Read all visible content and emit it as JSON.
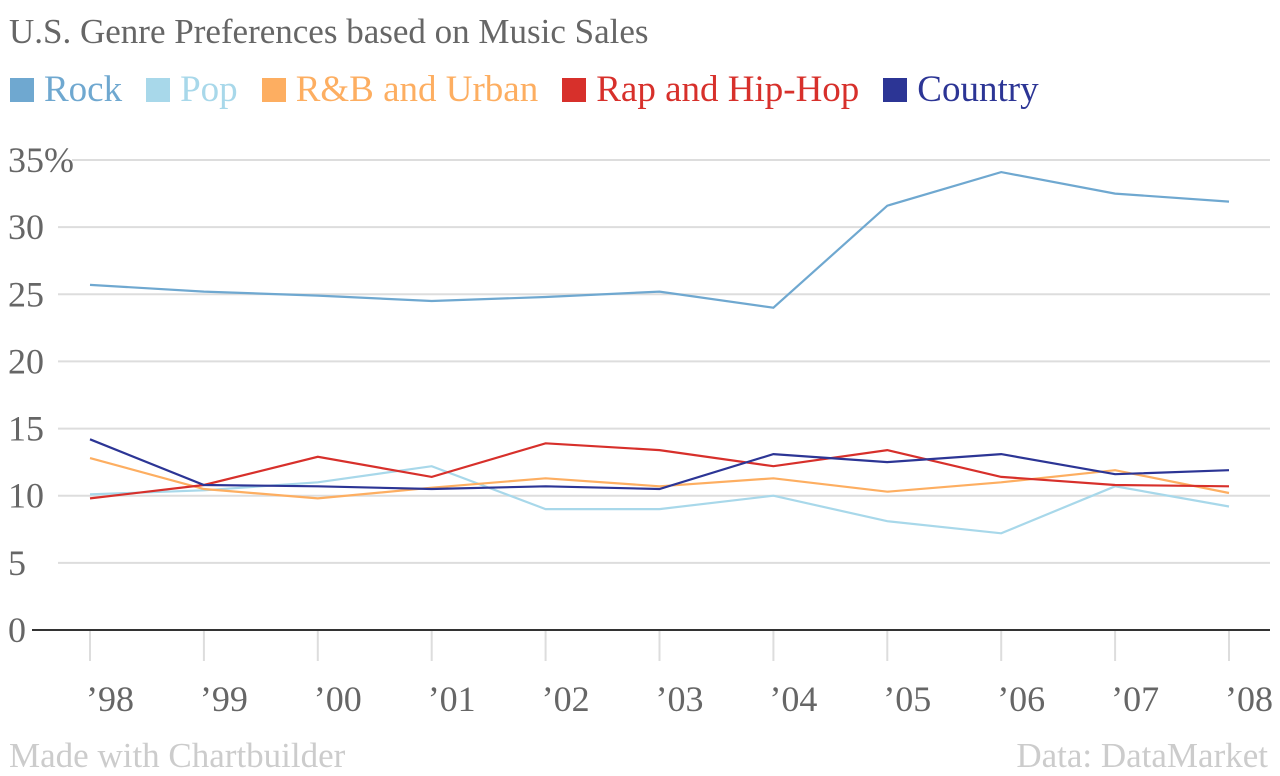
{
  "chart_data": {
    "type": "line",
    "title": "U.S. Genre Preferences based on Music Sales",
    "xlabel": "",
    "ylabel": "",
    "categories": [
      "’98",
      "’99",
      "’00",
      "’01",
      "’02",
      "’03",
      "’04",
      "’05",
      "’06",
      "’07",
      "’08"
    ],
    "y_ticks": [
      "0",
      "5",
      "10",
      "15",
      "20",
      "25",
      "30",
      "35%"
    ],
    "y_tick_values": [
      0,
      5,
      10,
      15,
      20,
      25,
      30,
      35
    ],
    "ylim": [
      0,
      35
    ],
    "grid": true,
    "legend_position": "top-left",
    "series": [
      {
        "name": "Rock",
        "color": "#6fa8d0",
        "values": [
          25.7,
          25.2,
          24.9,
          24.5,
          24.8,
          25.2,
          24.0,
          31.6,
          34.1,
          32.5,
          31.9
        ]
      },
      {
        "name": "Pop",
        "color": "#a8d8ea",
        "values": [
          10.1,
          10.4,
          11.0,
          12.2,
          9.0,
          9.0,
          10.0,
          8.1,
          7.2,
          10.7,
          9.2
        ]
      },
      {
        "name": "R&B and Urban",
        "color": "#fdae61",
        "values": [
          12.8,
          10.5,
          9.8,
          10.6,
          11.3,
          10.7,
          11.3,
          10.3,
          11.0,
          11.9,
          10.2
        ]
      },
      {
        "name": "Rap and Hip-Hop",
        "color": "#d7302b",
        "values": [
          9.8,
          10.8,
          12.9,
          11.4,
          13.9,
          13.4,
          12.2,
          13.4,
          11.4,
          10.8,
          10.7
        ]
      },
      {
        "name": "Country",
        "color": "#2c3595",
        "values": [
          14.2,
          10.8,
          10.7,
          10.5,
          10.7,
          10.5,
          13.1,
          12.5,
          13.1,
          11.6,
          11.9
        ]
      }
    ]
  },
  "footer": {
    "credit": "Made with Chartbuilder",
    "source": "Data: DataMarket"
  }
}
